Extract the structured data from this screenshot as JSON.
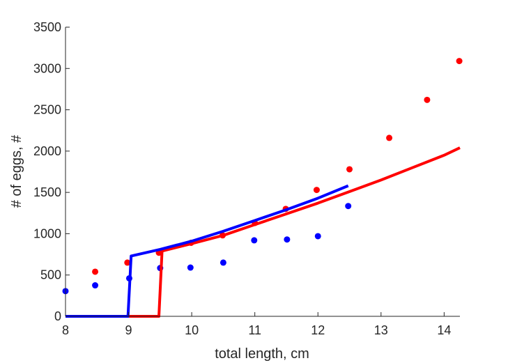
{
  "chart_data": {
    "type": "scatter",
    "title": "",
    "xlabel": "total length, cm",
    "ylabel": "# of eggs, #",
    "xlim": [
      8,
      14.25
    ],
    "ylim": [
      0,
      3500
    ],
    "xticks": [
      8,
      9,
      10,
      11,
      12,
      13,
      14
    ],
    "yticks": [
      0,
      500,
      1000,
      1500,
      2000,
      2500,
      3000,
      3500
    ],
    "grid": false,
    "legend": "none",
    "series": [
      {
        "kind": "points",
        "color": "#ff0000",
        "points": [
          [
            8.47,
            540
          ],
          [
            8.98,
            650
          ],
          [
            9.48,
            770
          ],
          [
            9.99,
            890
          ],
          [
            10.49,
            980
          ],
          [
            11.0,
            1130
          ],
          [
            11.49,
            1300
          ],
          [
            11.98,
            1530
          ],
          [
            12.5,
            1780
          ],
          [
            13.13,
            2160
          ],
          [
            13.73,
            2620
          ],
          [
            14.24,
            3090
          ]
        ]
      },
      {
        "kind": "points",
        "color": "#0000ff",
        "points": [
          [
            8.0,
            305
          ],
          [
            8.47,
            375
          ],
          [
            9.01,
            460
          ],
          [
            9.5,
            585
          ],
          [
            9.98,
            590
          ],
          [
            10.5,
            650
          ],
          [
            10.99,
            920
          ],
          [
            11.51,
            930
          ],
          [
            12.0,
            970
          ],
          [
            12.48,
            1335
          ]
        ]
      },
      {
        "kind": "line",
        "color": "#ff0000",
        "points": [
          [
            8.0,
            0
          ],
          [
            9.48,
            0
          ],
          [
            9.53,
            790
          ],
          [
            10.0,
            880
          ],
          [
            10.5,
            980
          ],
          [
            11.0,
            1110
          ],
          [
            11.5,
            1240
          ],
          [
            12.0,
            1370
          ],
          [
            12.5,
            1510
          ],
          [
            13.0,
            1650
          ],
          [
            13.5,
            1800
          ],
          [
            14.0,
            1950
          ],
          [
            14.25,
            2040
          ]
        ]
      },
      {
        "kind": "line",
        "color": "#0000ff",
        "points": [
          [
            8.0,
            0
          ],
          [
            8.99,
            0
          ],
          [
            9.04,
            730
          ],
          [
            9.5,
            810
          ],
          [
            10.0,
            910
          ],
          [
            10.5,
            1030
          ],
          [
            11.0,
            1160
          ],
          [
            11.5,
            1290
          ],
          [
            12.0,
            1430
          ],
          [
            12.48,
            1580
          ]
        ]
      }
    ]
  }
}
